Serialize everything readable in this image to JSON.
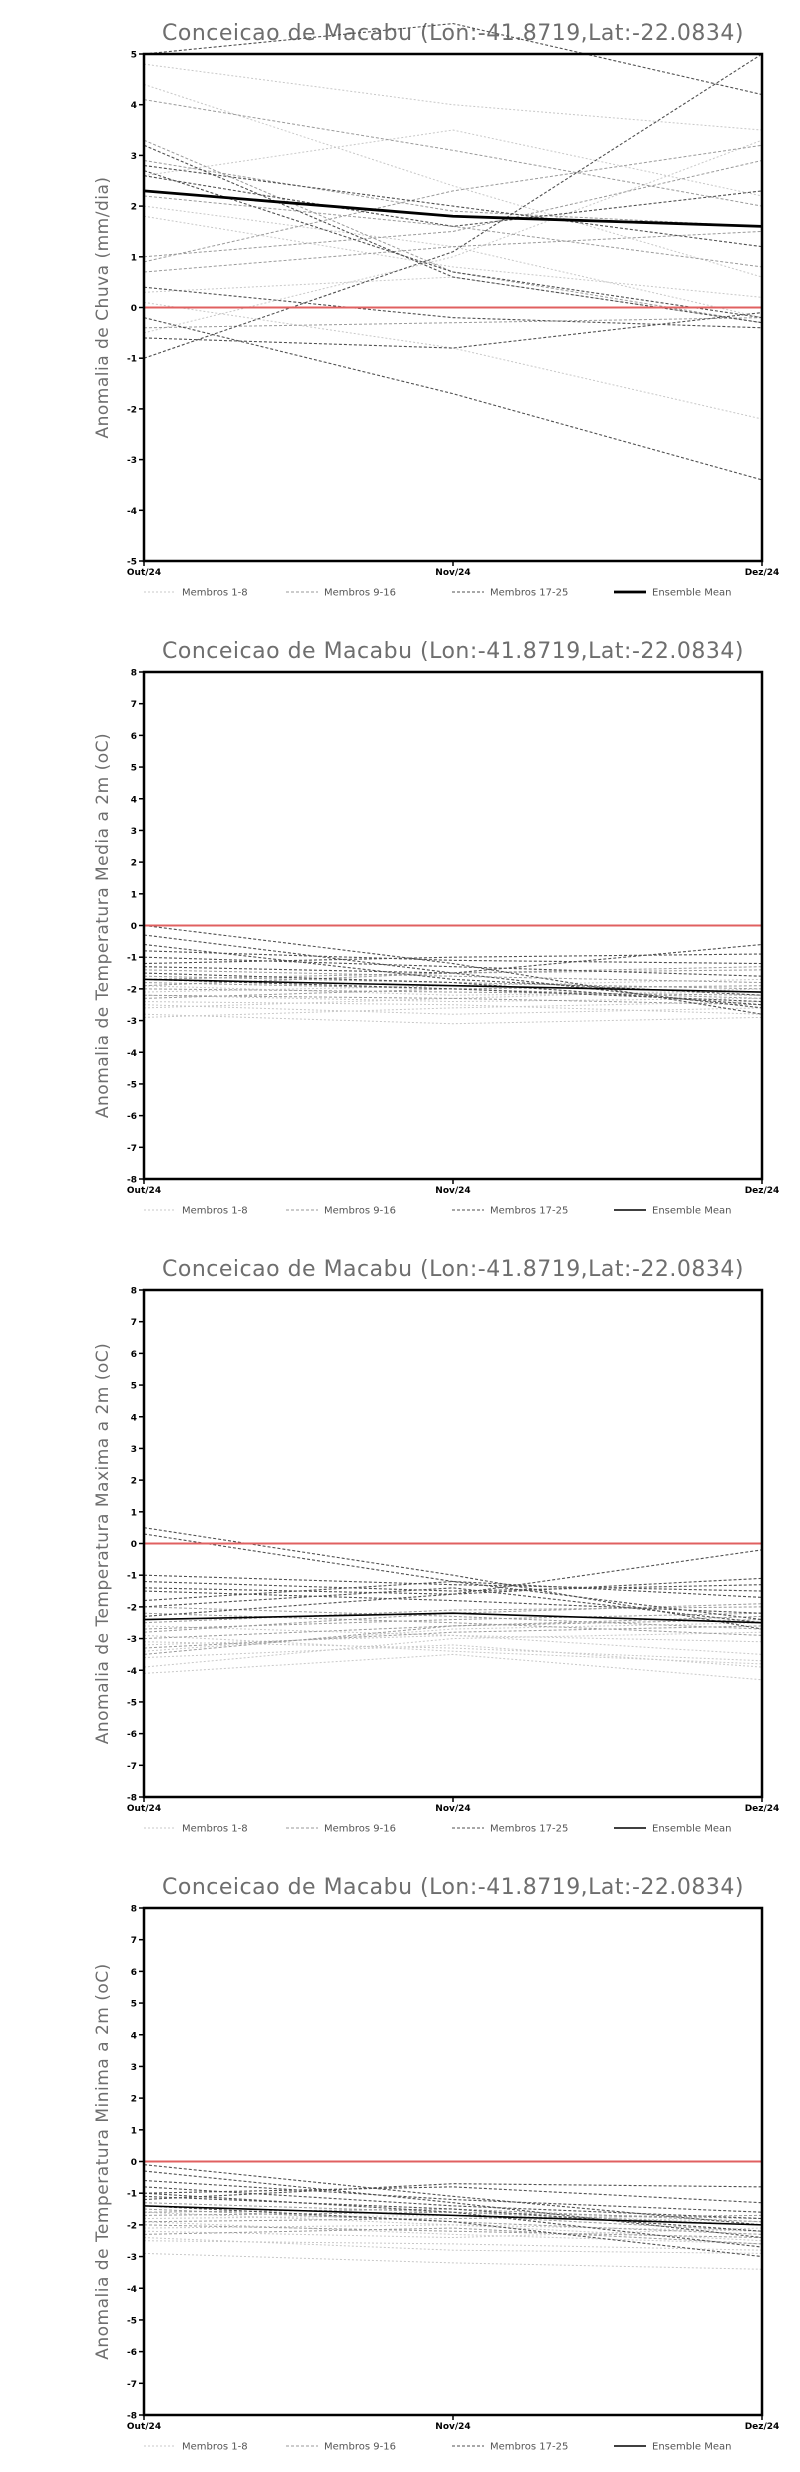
{
  "legend": {
    "group1": "Membros 1-8",
    "group2": "Membros 9-16",
    "group3": "Membros 17-25",
    "mean": "Ensemble Mean"
  },
  "colors": {
    "group1": "#c8c8c8",
    "group2": "#9a9a9a",
    "group3": "#505050",
    "mean": "#000000",
    "zero_line": "#e06060",
    "title": "#6e6e6e"
  },
  "chart_data": [
    {
      "type": "line",
      "title": "Conceicao de Macabu (Lon:-41.8719,Lat:-22.0834)",
      "xlabel": "",
      "ylabel": "Anomalia de Chuva (mm/dia)",
      "categories": [
        "Out/24",
        "Nov/24",
        "Dez/24"
      ],
      "ylim": [
        -5,
        5
      ],
      "yticks": [
        -5,
        -4,
        -3,
        -2,
        -1,
        0,
        1,
        2,
        3,
        4,
        5
      ],
      "zero_line": 0,
      "members": [
        [
          -0.5,
          1.0,
          3.3
        ],
        [
          0.3,
          0.6,
          -0.3
        ],
        [
          2.6,
          3.5,
          2.2
        ],
        [
          4.8,
          4.0,
          3.5
        ],
        [
          2.0,
          1.2,
          -0.2
        ],
        [
          1.8,
          0.8,
          0.2
        ],
        [
          0.1,
          -0.8,
          -2.2
        ],
        [
          4.4,
          2.4,
          0.6
        ],
        [
          4.1,
          3.1,
          2.0
        ],
        [
          3.3,
          0.7,
          -0.3
        ],
        [
          2.9,
          1.9,
          1.6
        ],
        [
          1.0,
          1.5,
          2.9
        ],
        [
          0.7,
          1.2,
          1.5
        ],
        [
          2.2,
          1.6,
          0.8
        ],
        [
          -0.4,
          -0.3,
          -0.2
        ],
        [
          0.9,
          2.3,
          3.2
        ],
        [
          -1.0,
          1.1,
          5.0
        ],
        [
          3.2,
          0.6,
          -0.3
        ],
        [
          2.7,
          0.7,
          -0.2
        ],
        [
          0.4,
          -0.2,
          -0.4
        ],
        [
          -0.6,
          -0.8,
          -0.1
        ],
        [
          -0.2,
          -1.7,
          -3.4
        ],
        [
          2.6,
          1.6,
          2.3
        ],
        [
          5.0,
          5.6,
          4.2
        ],
        [
          2.8,
          2.0,
          1.2
        ]
      ],
      "mean": [
        2.3,
        1.8,
        1.6
      ]
    },
    {
      "type": "line",
      "title": "Conceicao de Macabu (Lon:-41.8719,Lat:-22.0834)",
      "xlabel": "",
      "ylabel": "Anomalia de Temperatura Media a 2m (oC)",
      "categories": [
        "Out/24",
        "Nov/24",
        "Dez/24"
      ],
      "ylim": [
        -8,
        8
      ],
      "yticks": [
        -8,
        -7,
        -6,
        -5,
        -4,
        -3,
        -2,
        -1,
        0,
        1,
        2,
        3,
        4,
        5,
        6,
        7,
        8
      ],
      "zero_line": 0,
      "members": [
        [
          -2.8,
          -3.1,
          -2.9
        ],
        [
          -2.5,
          -2.8,
          -2.6
        ],
        [
          -2.2,
          -2.4,
          -2.3
        ],
        [
          -1.9,
          -2.2,
          -2.1
        ],
        [
          -2.6,
          -2.3,
          -2.0
        ],
        [
          -2.9,
          -2.6,
          -2.4
        ],
        [
          -2.1,
          -1.9,
          -1.7
        ],
        [
          -2.4,
          -2.5,
          -2.8
        ],
        [
          -1.6,
          -1.8,
          -2.0
        ],
        [
          -1.9,
          -1.5,
          -1.3
        ],
        [
          -2.3,
          -2.0,
          -1.9
        ],
        [
          -1.4,
          -1.6,
          -1.8
        ],
        [
          -2.0,
          -2.1,
          -2.2
        ],
        [
          -1.7,
          -1.5,
          -1.4
        ],
        [
          -2.2,
          -2.3,
          -2.5
        ],
        [
          -1.8,
          -2.0,
          -2.3
        ],
        [
          0.0,
          -1.2,
          -2.8
        ],
        [
          -0.3,
          -1.5,
          -2.6
        ],
        [
          -1.0,
          -1.3,
          -1.6
        ],
        [
          -0.8,
          -1.1,
          -1.2
        ],
        [
          -1.3,
          -1.5,
          -0.6
        ],
        [
          -1.5,
          -1.8,
          -2.5
        ],
        [
          -0.6,
          -1.7,
          -2.2
        ],
        [
          -1.2,
          -1.0,
          -0.9
        ],
        [
          -1.7,
          -2.0,
          -2.4
        ]
      ],
      "mean": [
        -1.7,
        -1.9,
        -2.1
      ]
    },
    {
      "type": "line",
      "title": "Conceicao de Macabu (Lon:-41.8719,Lat:-22.0834)",
      "xlabel": "",
      "ylabel": "Anomalia de Temperatura Maxima a 2m (oC)",
      "categories": [
        "Out/24",
        "Nov/24",
        "Dez/24"
      ],
      "ylim": [
        -8,
        8
      ],
      "yticks": [
        -8,
        -7,
        -6,
        -5,
        -4,
        -3,
        -2,
        -1,
        0,
        1,
        2,
        3,
        4,
        5,
        6,
        7,
        8
      ],
      "zero_line": 0,
      "members": [
        [
          -4.1,
          -3.5,
          -4.3
        ],
        [
          -3.6,
          -3.2,
          -3.9
        ],
        [
          -3.2,
          -2.9,
          -3.1
        ],
        [
          -2.9,
          -3.4,
          -3.8
        ],
        [
          -3.9,
          -3.0,
          -2.8
        ],
        [
          -3.4,
          -2.7,
          -2.5
        ],
        [
          -2.6,
          -2.9,
          -3.5
        ],
        [
          -3.1,
          -3.3,
          -3.7
        ],
        [
          -2.7,
          -2.4,
          -2.2
        ],
        [
          -2.2,
          -2.5,
          -2.9
        ],
        [
          -3.0,
          -2.6,
          -2.3
        ],
        [
          -2.5,
          -2.1,
          -2.0
        ],
        [
          -3.3,
          -2.8,
          -2.6
        ],
        [
          -2.0,
          -2.3,
          -2.7
        ],
        [
          -2.8,
          -2.2,
          -1.9
        ],
        [
          -3.5,
          -2.6,
          -2.4
        ],
        [
          0.5,
          -1.0,
          -2.7
        ],
        [
          0.3,
          -1.2,
          -2.4
        ],
        [
          -1.0,
          -1.3,
          -1.5
        ],
        [
          -1.4,
          -1.6,
          -1.1
        ],
        [
          -2.3,
          -1.6,
          -0.2
        ],
        [
          -1.8,
          -1.2,
          -1.7
        ],
        [
          -1.5,
          -1.8,
          -2.2
        ],
        [
          -1.2,
          -1.5,
          -1.3
        ],
        [
          -2.0,
          -1.4,
          -2.5
        ]
      ],
      "mean": [
        -2.4,
        -2.2,
        -2.5
      ]
    },
    {
      "type": "line",
      "title": "Conceicao de Macabu (Lon:-41.8719,Lat:-22.0834)",
      "xlabel": "",
      "ylabel": "Anomalia de Temperatura Minima a 2m (oC)",
      "categories": [
        "Out/24",
        "Nov/24",
        "Dez/24"
      ],
      "ylim": [
        -8,
        8
      ],
      "yticks": [
        -8,
        -7,
        -6,
        -5,
        -4,
        -3,
        -2,
        -1,
        0,
        1,
        2,
        3,
        4,
        5,
        6,
        7,
        8
      ],
      "zero_line": 0,
      "members": [
        [
          -2.9,
          -3.2,
          -3.4
        ],
        [
          -2.4,
          -2.8,
          -2.9
        ],
        [
          -1.9,
          -2.3,
          -2.6
        ],
        [
          -2.1,
          -2.0,
          -2.2
        ],
        [
          -1.6,
          -2.0,
          -2.5
        ],
        [
          -2.2,
          -2.4,
          -2.1
        ],
        [
          -1.8,
          -1.7,
          -1.9
        ],
        [
          -2.5,
          -2.6,
          -2.8
        ],
        [
          -1.5,
          -1.9,
          -2.3
        ],
        [
          -1.7,
          -1.6,
          -1.8
        ],
        [
          -2.0,
          -2.2,
          -2.4
        ],
        [
          -1.3,
          -1.6,
          -2.0
        ],
        [
          -1.9,
          -1.8,
          -1.7
        ],
        [
          -1.4,
          -1.7,
          -2.2
        ],
        [
          -2.3,
          -2.1,
          -2.6
        ],
        [
          -1.6,
          -1.5,
          -1.9
        ],
        [
          -0.3,
          -1.3,
          -2.4
        ],
        [
          -0.1,
          -1.1,
          -2.0
        ],
        [
          -1.0,
          -0.8,
          -1.3
        ],
        [
          -0.8,
          -1.4,
          -1.8
        ],
        [
          -1.2,
          -0.7,
          -0.8
        ],
        [
          -1.4,
          -1.9,
          -3.0
        ],
        [
          -1.0,
          -1.6,
          -2.7
        ],
        [
          -0.6,
          -1.2,
          -1.6
        ],
        [
          -1.1,
          -1.5,
          -2.2
        ]
      ],
      "mean": [
        -1.4,
        -1.7,
        -2.0
      ]
    }
  ]
}
